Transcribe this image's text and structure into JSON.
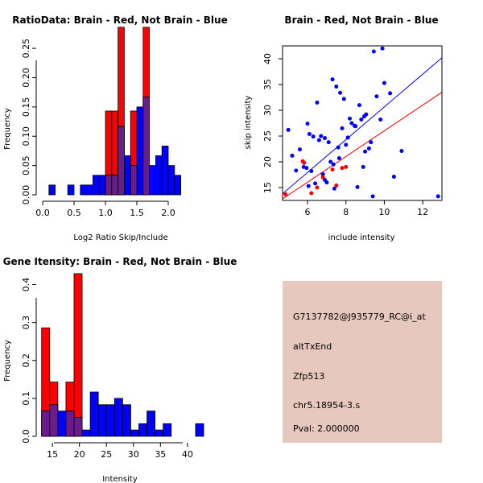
{
  "chart_data": [
    {
      "type": "histogram",
      "title": "RatioData: Brain - Red, Not Brain - Blue",
      "xlabel": "Log2 Ratio Skip/Include",
      "ylabel": "Frequency",
      "xlim": [
        0,
        2.5
      ],
      "ylim": [
        0,
        0.29
      ],
      "bin_width": 0.1,
      "x_ticks": [
        "0.0",
        "0.5",
        "1.0",
        "1.5",
        "2.0"
      ],
      "y_ticks": [
        "0.00",
        "0.05",
        "0.10",
        "0.15",
        "0.20",
        "0.25"
      ],
      "series": [
        {
          "name": "Brain",
          "color": "#FF0000",
          "bins": [
            {
              "start": 1.0,
              "value": 0.143
            },
            {
              "start": 1.1,
              "value": 0.143
            },
            {
              "start": 1.2,
              "value": 0.286
            },
            {
              "start": 1.4,
              "value": 0.143
            },
            {
              "start": 1.6,
              "value": 0.286
            }
          ]
        },
        {
          "name": "Not Brain",
          "color": "#0000FF",
          "bins": [
            {
              "start": 0.1,
              "value": 0.0167
            },
            {
              "start": 0.4,
              "value": 0.0167
            },
            {
              "start": 0.6,
              "value": 0.0167
            },
            {
              "start": 0.7,
              "value": 0.0167
            },
            {
              "start": 0.8,
              "value": 0.0333
            },
            {
              "start": 0.9,
              "value": 0.0333
            },
            {
              "start": 1.0,
              "value": 0.0333
            },
            {
              "start": 1.1,
              "value": 0.0333
            },
            {
              "start": 1.2,
              "value": 0.1167
            },
            {
              "start": 1.3,
              "value": 0.0667
            },
            {
              "start": 1.4,
              "value": 0.05
            },
            {
              "start": 1.5,
              "value": 0.15
            },
            {
              "start": 1.6,
              "value": 0.1667
            },
            {
              "start": 1.7,
              "value": 0.05
            },
            {
              "start": 1.8,
              "value": 0.0667
            },
            {
              "start": 1.9,
              "value": 0.0833
            },
            {
              "start": 2.0,
              "value": 0.05
            },
            {
              "start": 2.1,
              "value": 0.0333
            }
          ]
        }
      ]
    },
    {
      "type": "scatter",
      "title": "Brain - Red, Not Brain - Blue",
      "xlabel": "include intensity",
      "ylabel": "skip intensity",
      "xlim": [
        4.7,
        13.0
      ],
      "ylim": [
        12.5,
        42.5
      ],
      "x_ticks": [
        "6",
        "8",
        "10",
        "12"
      ],
      "y_ticks": [
        "15",
        "20",
        "25",
        "30",
        "35",
        "40"
      ],
      "series": [
        {
          "name": "Brain",
          "color": "#FF0000",
          "points": [
            [
              4.85,
              13.7
            ],
            [
              5.75,
              20.1
            ],
            [
              5.82,
              19.8
            ],
            [
              6.2,
              13.9
            ],
            [
              6.5,
              15.0
            ],
            [
              6.8,
              17.0
            ],
            [
              7.3,
              18.5
            ],
            [
              7.8,
              18.8
            ],
            [
              8.0,
              19.0
            ],
            [
              7.5,
              15.4
            ]
          ],
          "fit_line": {
            "x": [
              4.7,
              13.0
            ],
            "y": [
              12.8,
              33.5
            ]
          }
        },
        {
          "name": "Not Brain",
          "color": "#0000FF",
          "points": [
            [
              5.0,
              26.2
            ],
            [
              5.2,
              21.2
            ],
            [
              5.4,
              18.3
            ],
            [
              5.6,
              22.4
            ],
            [
              5.8,
              19.0
            ],
            [
              6.0,
              27.4
            ],
            [
              6.1,
              25.4
            ],
            [
              6.2,
              18.2
            ],
            [
              6.3,
              24.9
            ],
            [
              6.4,
              15.8
            ],
            [
              6.5,
              31.5
            ],
            [
              6.6,
              24.2
            ],
            [
              6.7,
              25.0
            ],
            [
              6.8,
              17.6
            ],
            [
              6.9,
              16.5
            ],
            [
              7.0,
              16.0
            ],
            [
              7.1,
              23.8
            ],
            [
              7.2,
              20.0
            ],
            [
              7.3,
              36.0
            ],
            [
              7.4,
              14.8
            ],
            [
              7.5,
              34.6
            ],
            [
              7.6,
              22.8
            ],
            [
              7.7,
              33.4
            ],
            [
              7.8,
              26.5
            ],
            [
              7.9,
              32.2
            ],
            [
              8.0,
              23.3
            ],
            [
              8.1,
              24.7
            ],
            [
              8.2,
              28.4
            ],
            [
              8.3,
              27.5
            ],
            [
              8.5,
              26.9
            ],
            [
              8.6,
              15.1
            ],
            [
              8.7,
              31.0
            ],
            [
              8.8,
              28.2
            ],
            [
              8.9,
              19.0
            ],
            [
              9.0,
              22.0
            ],
            [
              9.2,
              22.6
            ],
            [
              9.3,
              23.8
            ],
            [
              9.4,
              13.3
            ],
            [
              9.45,
              41.4
            ],
            [
              9.6,
              32.7
            ],
            [
              9.8,
              28.2
            ],
            [
              9.9,
              42.0
            ],
            [
              10.0,
              35.3
            ],
            [
              10.3,
              33.3
            ],
            [
              10.5,
              17.1
            ],
            [
              10.9,
              22.1
            ],
            [
              12.8,
              13.3
            ],
            [
              6.05,
              15.3
            ],
            [
              6.9,
              24.6
            ],
            [
              7.35,
              19.5
            ],
            [
              5.95,
              18.8
            ],
            [
              8.45,
              27.0
            ],
            [
              9.05,
              29.2
            ],
            [
              7.65,
              20.7
            ],
            [
              8.95,
              28.8
            ]
          ],
          "fit_line": {
            "x": [
              4.7,
              13.0
            ],
            "y": [
              13.8,
              40.2
            ]
          }
        }
      ]
    },
    {
      "type": "histogram",
      "title": "Gene Itensity: Brain - Red, Not Brain - Blue",
      "xlabel": "Intensity",
      "ylabel": "Frequency",
      "xlim": [
        12,
        43
      ],
      "ylim": [
        0,
        0.45
      ],
      "bin_width": 1.5,
      "x_ticks": [
        "15",
        "20",
        "25",
        "30",
        "35",
        "40"
      ],
      "y_ticks": [
        "0.0",
        "0.1",
        "0.2",
        "0.3",
        "0.4"
      ],
      "series": [
        {
          "name": "Brain",
          "color": "#FF0000",
          "bins": [
            {
              "start": 13.0,
              "value": 0.286
            },
            {
              "start": 14.5,
              "value": 0.143
            },
            {
              "start": 17.5,
              "value": 0.143
            },
            {
              "start": 19.0,
              "value": 0.429
            }
          ]
        },
        {
          "name": "Not Brain",
          "color": "#0000FF",
          "bins": [
            {
              "start": 13.0,
              "value": 0.0667
            },
            {
              "start": 14.5,
              "value": 0.0833
            },
            {
              "start": 16.0,
              "value": 0.0667
            },
            {
              "start": 17.5,
              "value": 0.0667
            },
            {
              "start": 19.0,
              "value": 0.05
            },
            {
              "start": 20.5,
              "value": 0.0167
            },
            {
              "start": 22.0,
              "value": 0.1167
            },
            {
              "start": 23.5,
              "value": 0.0833
            },
            {
              "start": 25.0,
              "value": 0.0833
            },
            {
              "start": 26.5,
              "value": 0.1
            },
            {
              "start": 28.0,
              "value": 0.0833
            },
            {
              "start": 29.5,
              "value": 0.0167
            },
            {
              "start": 31.0,
              "value": 0.0333
            },
            {
              "start": 32.5,
              "value": 0.0667
            },
            {
              "start": 34.0,
              "value": 0.0167
            },
            {
              "start": 35.5,
              "value": 0.0333
            },
            {
              "start": 41.5,
              "value": 0.0333
            }
          ]
        }
      ]
    }
  ],
  "info_panel": {
    "background": "#E6C8BE",
    "probe_id": "G7137782@J935779_RC@i_at",
    "event_type": "altTxEnd",
    "gene": "Zfp513",
    "location": "chr5.18954-3.s",
    "pval": "Pval: 2.000000",
    "pval_color": "#CC0000"
  }
}
